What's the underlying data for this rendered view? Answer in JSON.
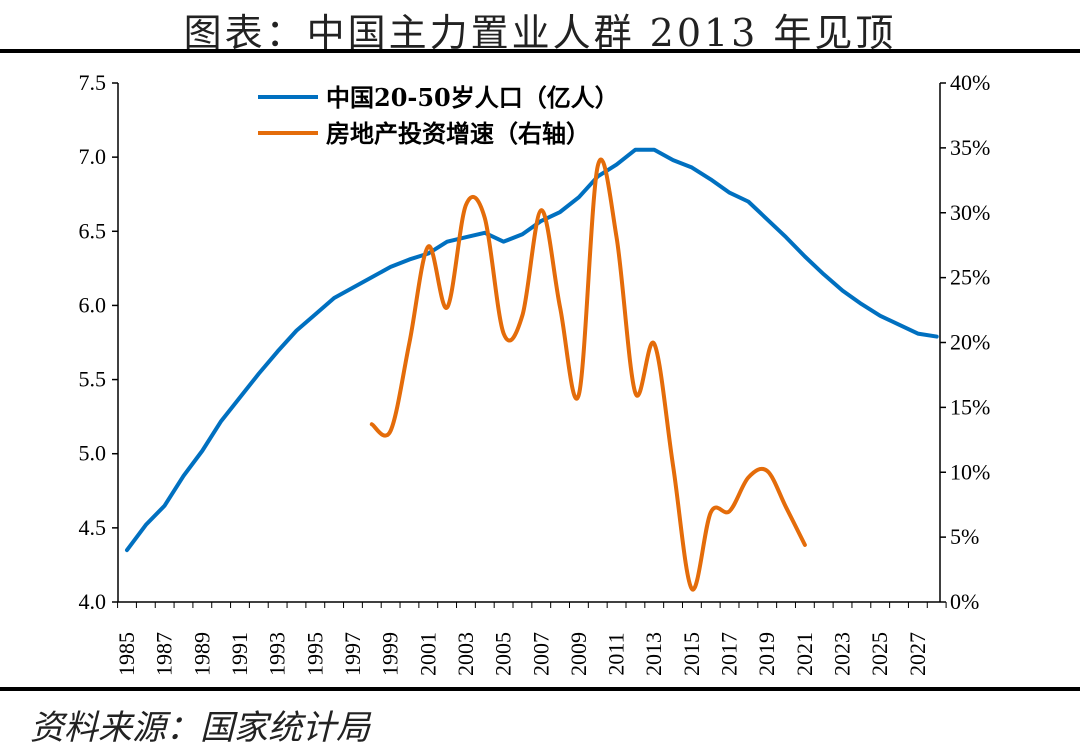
{
  "title": "图表：中国主力置业人群 2013 年见顶",
  "source": "资料来源：国家统计局",
  "chart_data": {
    "type": "line",
    "title": "图表：中国主力置业人群 2013 年见顶",
    "x_ticks": [
      "1985",
      "1987",
      "1989",
      "1991",
      "1993",
      "1995",
      "1997",
      "1999",
      "2001",
      "2003",
      "2005",
      "2007",
      "2009",
      "2011",
      "2013",
      "2015",
      "2017",
      "2019",
      "2021",
      "2023",
      "2025",
      "2027"
    ],
    "xlim": [
      1985,
      2028
    ],
    "y_left": {
      "lim": [
        4.0,
        7.5
      ],
      "ticks": [
        "4.0",
        "4.5",
        "5.0",
        "5.5",
        "6.0",
        "6.5",
        "7.0",
        "7.5"
      ]
    },
    "y_right": {
      "lim": [
        0,
        40
      ],
      "ticks": [
        "0%",
        "5%",
        "10%",
        "15%",
        "20%",
        "25%",
        "30%",
        "35%",
        "40%"
      ]
    },
    "grid": false,
    "legend_position": "top-left",
    "series": [
      {
        "name": "中国20-50岁人口（亿人）",
        "axis": "left",
        "color": "#0070C0",
        "x": [
          1985,
          1986,
          1987,
          1988,
          1989,
          1990,
          1991,
          1992,
          1993,
          1994,
          1995,
          1996,
          1997,
          1998,
          1999,
          2000,
          2001,
          2002,
          2003,
          2004,
          2005,
          2006,
          2007,
          2008,
          2009,
          2010,
          2011,
          2012,
          2013,
          2014,
          2015,
          2016,
          2017,
          2018,
          2019,
          2020,
          2021,
          2022,
          2023,
          2024,
          2025,
          2026,
          2027,
          2028
        ],
        "values": [
          4.35,
          4.52,
          4.65,
          4.85,
          5.02,
          5.22,
          5.38,
          5.54,
          5.69,
          5.83,
          5.94,
          6.05,
          6.12,
          6.19,
          6.26,
          6.31,
          6.35,
          6.43,
          6.46,
          6.49,
          6.43,
          6.48,
          6.57,
          6.63,
          6.73,
          6.87,
          6.95,
          7.05,
          7.05,
          6.98,
          6.93,
          6.85,
          6.76,
          6.7,
          6.58,
          6.46,
          6.33,
          6.21,
          6.1,
          6.01,
          5.93,
          5.87,
          5.81,
          5.79
        ]
      },
      {
        "name": "房地产投资增速（右轴）",
        "axis": "right",
        "color": "#E46C0A",
        "x": [
          1998,
          1999,
          2000,
          2001,
          2002,
          2003,
          2004,
          2005,
          2006,
          2007,
          2008,
          2009,
          2010,
          2011,
          2012,
          2013,
          2014,
          2015,
          2016,
          2017,
          2018,
          2019,
          2020,
          2021
        ],
        "values": [
          13.7,
          13.2,
          20.0,
          27.4,
          22.7,
          30.6,
          29.6,
          20.7,
          22.1,
          30.2,
          22.7,
          16.0,
          33.6,
          28.1,
          16.1,
          19.9,
          10.5,
          1.0,
          6.9,
          7.0,
          9.6,
          10.1,
          7.3,
          4.4
        ]
      }
    ]
  }
}
